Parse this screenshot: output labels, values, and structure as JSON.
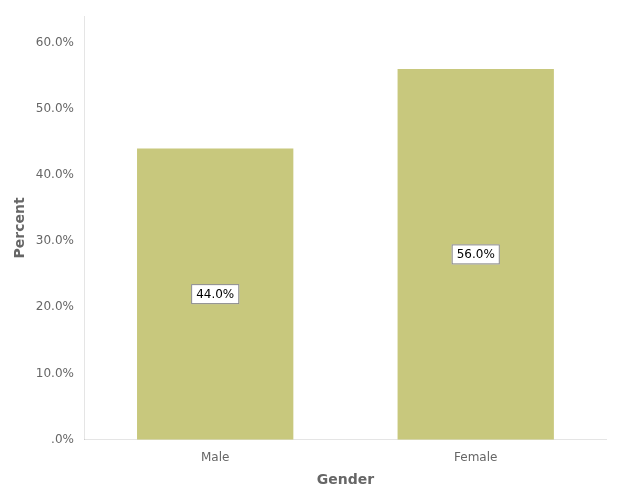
{
  "chart_data": {
    "type": "bar",
    "categories": [
      "Male",
      "Female"
    ],
    "values": [
      44.0,
      56.0
    ],
    "value_labels": [
      "44.0%",
      "56.0%"
    ],
    "data_labels": true,
    "color": "#c8c87d",
    "xlabel": "Gender",
    "ylabel": "Percent",
    "ylim": [
      0,
      64
    ],
    "yticks": [
      {
        "value": 0,
        "label": ".0%"
      },
      {
        "value": 10,
        "label": "10.0%"
      },
      {
        "value": 20,
        "label": "20.0%"
      },
      {
        "value": 30,
        "label": "30.0%"
      },
      {
        "value": 40,
        "label": "40.0%"
      },
      {
        "value": 50,
        "label": "50.0%"
      },
      {
        "value": 60,
        "label": "60.0%"
      }
    ],
    "grid": false
  }
}
